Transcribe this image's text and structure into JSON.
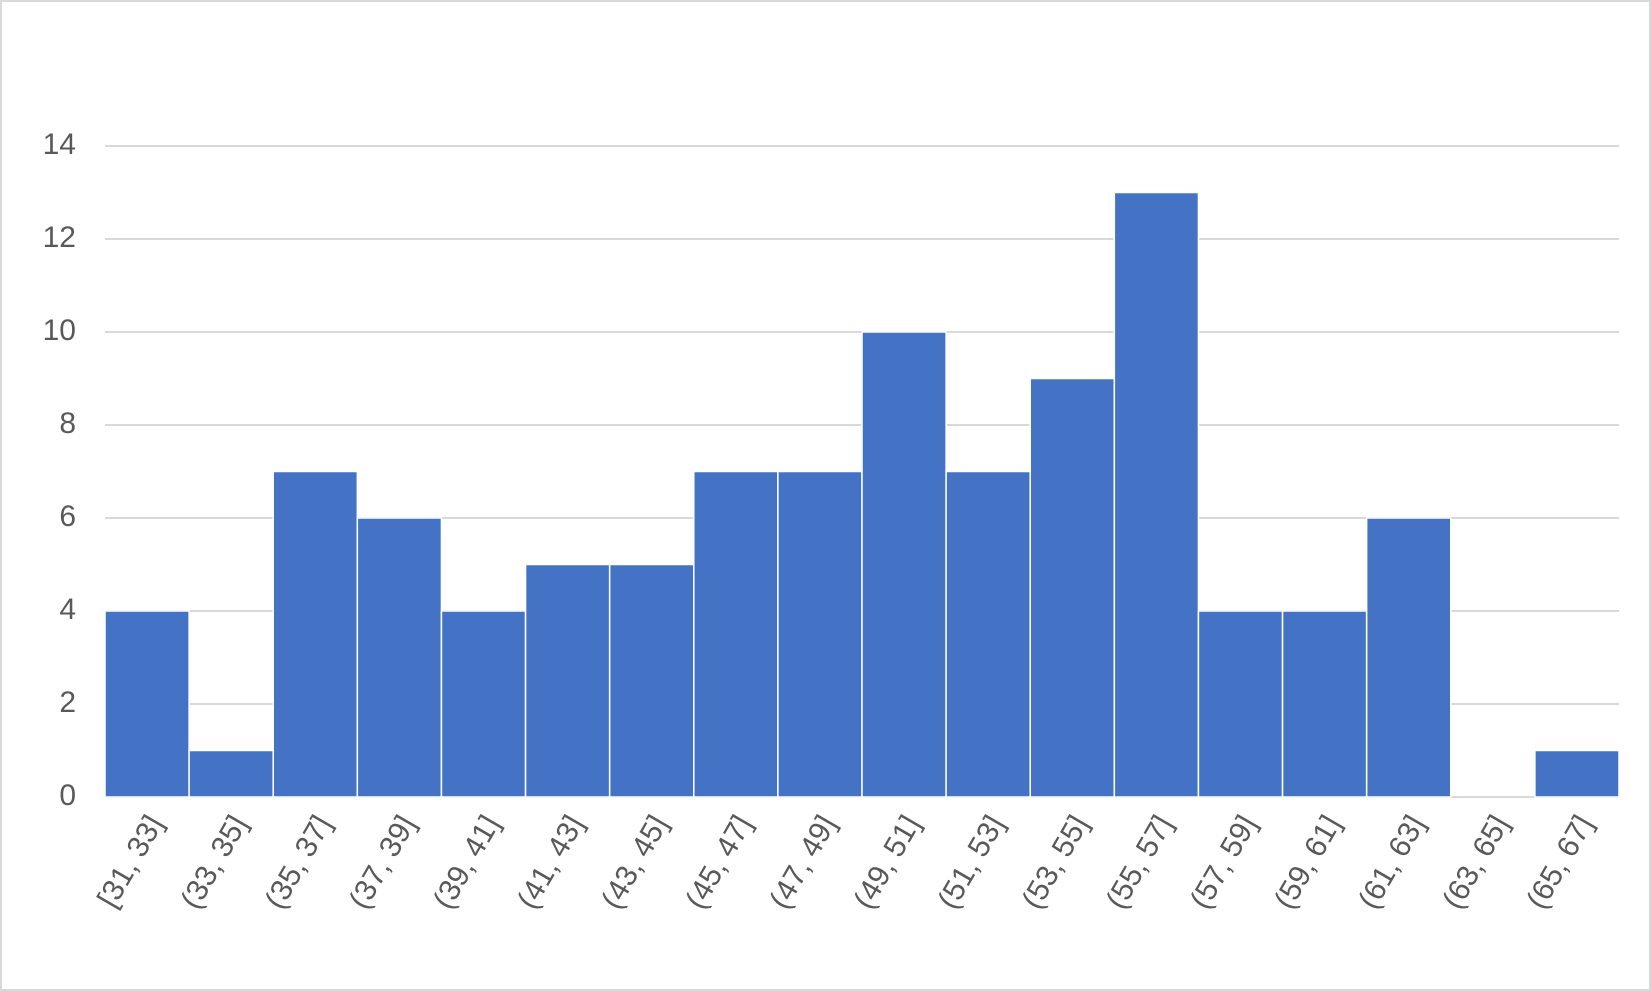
{
  "chart_data": {
    "type": "bar",
    "categories": [
      "[31, 33]",
      "(33, 35]",
      "(35, 37]",
      "(37, 39]",
      "(39, 41]",
      "(41, 43]",
      "(43, 45]",
      "(45, 47]",
      "(47, 49]",
      "(49, 51]",
      "(51, 53]",
      "(53, 55]",
      "(55, 57]",
      "(57, 59]",
      "(59, 61]",
      "(61, 63]",
      "(63, 65]",
      "(65, 67]"
    ],
    "values": [
      4,
      1,
      7,
      6,
      4,
      5,
      5,
      7,
      7,
      10,
      7,
      9,
      13,
      4,
      4,
      6,
      0,
      1
    ],
    "color": "#4472c4",
    "ylim": [
      0,
      14
    ],
    "yticks": [
      0,
      2,
      4,
      6,
      8,
      10,
      12,
      14
    ],
    "grid": true
  }
}
